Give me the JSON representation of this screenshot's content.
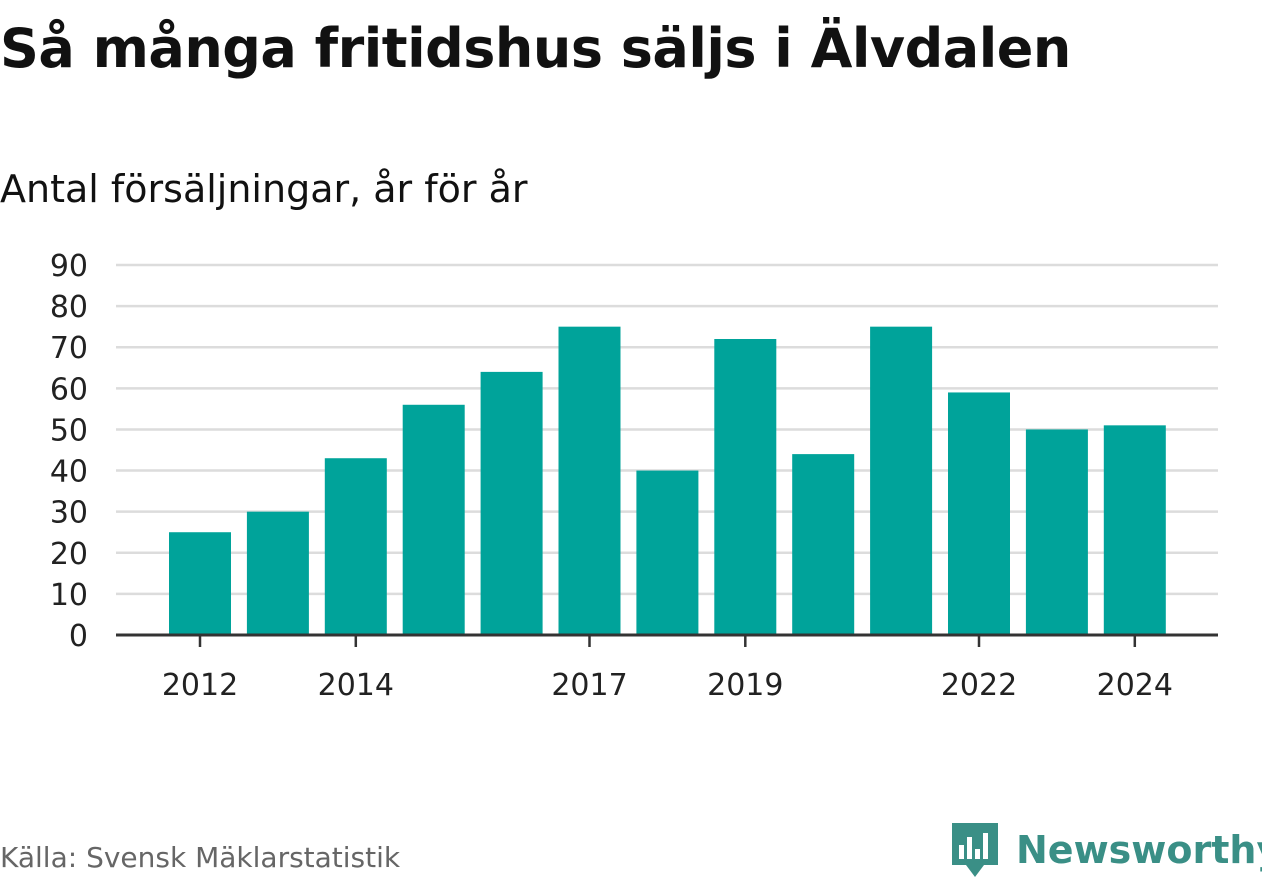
{
  "header": {
    "title": "Så många fritidshus säljs i Älvdalen",
    "subtitle": "Antal försäljningar, år för år"
  },
  "footer": {
    "source": "Källa: Svensk Mäklarstatistik",
    "logo_text": "Newsworthy"
  },
  "colors": {
    "bar": "#00a39a",
    "grid": "#dcdcdc",
    "axis": "#333333",
    "tick_text": "#222222",
    "logo": "#3a8f86"
  },
  "icons": {
    "logo_mark": "bar-chart-speech-bubble-icon"
  },
  "chart_data": {
    "type": "bar",
    "title": "Så många fritidshus säljs i Älvdalen",
    "subtitle": "Antal försäljningar, år för år",
    "xlabel": "",
    "ylabel": "",
    "categories": [
      "2012",
      "2013",
      "2014",
      "2015",
      "2016",
      "2017",
      "2018",
      "2019",
      "2020",
      "2021",
      "2022",
      "2023",
      "2024"
    ],
    "values": [
      25,
      30,
      43,
      56,
      64,
      75,
      40,
      72,
      44,
      75,
      59,
      50,
      51
    ],
    "x_tick_labels": [
      "2012",
      "2014",
      "2017",
      "2019",
      "2022",
      "2024"
    ],
    "yticks": [
      0,
      10,
      20,
      30,
      40,
      50,
      60,
      70,
      80,
      90
    ],
    "ylim": [
      0,
      90
    ],
    "grid": true,
    "legend": "none"
  }
}
